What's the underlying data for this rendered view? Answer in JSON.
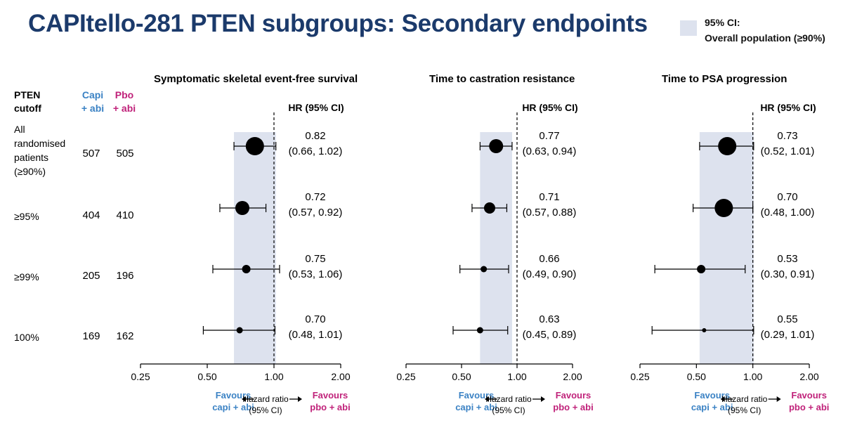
{
  "title": "CAPItello-281 PTEN subgroups: Secondary endpoints",
  "legend": {
    "line1": "95% CI:",
    "line2": "Overall population (≥90%)",
    "color": "#dde2ee"
  },
  "columns": {
    "pten": [
      "PTEN",
      "cutoff"
    ],
    "capi": [
      "Capi",
      "+ abi"
    ],
    "pbo": [
      "Pbo",
      "+ abi"
    ]
  },
  "colors": {
    "capi": "#3b82c4",
    "pbo": "#c0227a",
    "shade": "#dde2ee"
  },
  "rows": [
    {
      "label": [
        "All",
        "randomised",
        "patients",
        "(≥90%)"
      ],
      "capi": "507",
      "pbo": "505"
    },
    {
      "label": [
        "≥95%"
      ],
      "capi": "404",
      "pbo": "410"
    },
    {
      "label": [
        "≥99%"
      ],
      "capi": "205",
      "pbo": "196"
    },
    {
      "label": [
        "100%"
      ],
      "capi": "169",
      "pbo": "162"
    }
  ],
  "chart_data": [
    {
      "type": "forest",
      "title": "Symptomatic skeletal event-free survival",
      "hr_header": "HR (95% CI)",
      "xscale": "log",
      "xticks": [
        "0.25",
        "0.50",
        "1.00",
        "2.00"
      ],
      "xlim": [
        0.25,
        2.0
      ],
      "overall_ci": [
        0.66,
        1.02
      ],
      "points": [
        {
          "hr": 0.82,
          "lo": 0.66,
          "hi": 1.02,
          "ci_text": "(0.66, 1.02)",
          "hr_text": "0.82",
          "size": "large"
        },
        {
          "hr": 0.72,
          "lo": 0.57,
          "hi": 0.92,
          "ci_text": "(0.57, 0.92)",
          "hr_text": "0.72",
          "size": "medium"
        },
        {
          "hr": 0.75,
          "lo": 0.53,
          "hi": 1.06,
          "ci_text": "(0.53, 1.06)",
          "hr_text": "0.75",
          "size": "small"
        },
        {
          "hr": 0.7,
          "lo": 0.48,
          "hi": 1.01,
          "ci_text": "(0.48, 1.01)",
          "hr_text": "0.70",
          "size": "xsmall"
        }
      ],
      "favours_left": [
        "Favours",
        "capi + abi"
      ],
      "favours_right": [
        "Favours",
        "pbo + abi"
      ],
      "axis_label": [
        "Hazard ratio",
        "(95% CI)"
      ]
    },
    {
      "type": "forest",
      "title": "Time to castration resistance",
      "hr_header": "HR (95% CI)",
      "xscale": "log",
      "xticks": [
        "0.25",
        "0.50",
        "1.00",
        "2.00"
      ],
      "xlim": [
        0.25,
        2.0
      ],
      "overall_ci": [
        0.63,
        0.94
      ],
      "points": [
        {
          "hr": 0.77,
          "lo": 0.63,
          "hi": 0.94,
          "ci_text": "(0.63, 0.94)",
          "hr_text": "0.77",
          "size": "medium"
        },
        {
          "hr": 0.71,
          "lo": 0.57,
          "hi": 0.88,
          "ci_text": "(0.57, 0.88)",
          "hr_text": "0.71",
          "size": "small2"
        },
        {
          "hr": 0.66,
          "lo": 0.49,
          "hi": 0.9,
          "ci_text": "(0.49, 0.90)",
          "hr_text": "0.66",
          "size": "xsmall"
        },
        {
          "hr": 0.63,
          "lo": 0.45,
          "hi": 0.89,
          "ci_text": "(0.45, 0.89)",
          "hr_text": "0.63",
          "size": "xsmall"
        }
      ],
      "favours_left": [
        "Favours",
        "capi + abi"
      ],
      "favours_right": [
        "Favours",
        "pbo + abi"
      ],
      "axis_label": [
        "Hazard ratio",
        "(95% CI)"
      ]
    },
    {
      "type": "forest",
      "title": "Time to PSA progression",
      "hr_header": "HR (95% CI)",
      "xscale": "log",
      "xticks": [
        "0.25",
        "0.50",
        "1.00",
        "2.00"
      ],
      "xlim": [
        0.25,
        2.0
      ],
      "overall_ci": [
        0.52,
        1.01
      ],
      "points": [
        {
          "hr": 0.73,
          "lo": 0.52,
          "hi": 1.01,
          "ci_text": "(0.52, 1.01)",
          "hr_text": "0.73",
          "size": "large"
        },
        {
          "hr": 0.7,
          "lo": 0.48,
          "hi": 1.0,
          "ci_text": "(0.48, 1.00)",
          "hr_text": "0.70",
          "size": "large"
        },
        {
          "hr": 0.53,
          "lo": 0.3,
          "hi": 0.91,
          "ci_text": "(0.30, 0.91)",
          "hr_text": "0.53",
          "size": "small"
        },
        {
          "hr": 0.55,
          "lo": 0.29,
          "hi": 1.01,
          "ci_text": "(0.29, 1.01)",
          "hr_text": "0.55",
          "size": "tiny"
        }
      ],
      "favours_left": [
        "Favours",
        "capi + abi"
      ],
      "favours_right": [
        "Favours",
        "pbo + abi"
      ],
      "axis_label": [
        "Hazard ratio",
        "(95% CI)"
      ]
    }
  ]
}
